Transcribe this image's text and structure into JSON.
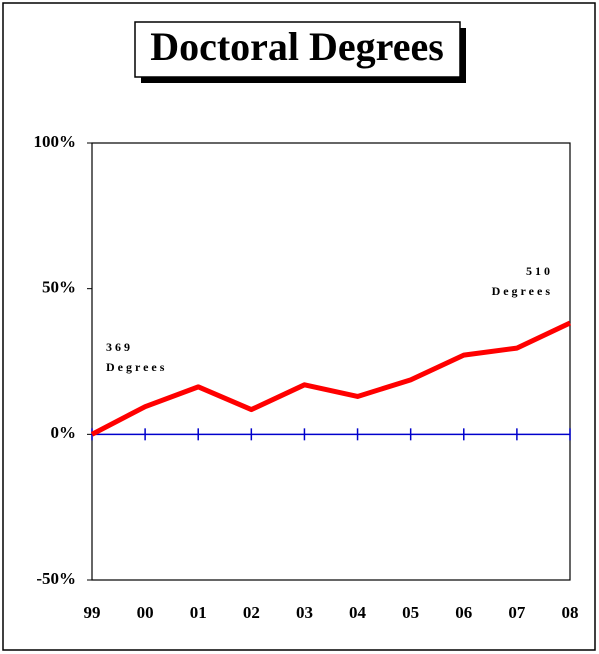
{
  "chart_data": {
    "type": "line",
    "title": "Doctoral Degrees",
    "categories": [
      "99",
      "00",
      "01",
      "02",
      "03",
      "04",
      "05",
      "06",
      "07",
      "08"
    ],
    "values": [
      0,
      9.5,
      16.3,
      8.5,
      17,
      13,
      18.7,
      27.2,
      29.6,
      38.2
    ],
    "color": "#ff0000",
    "zero_line_color": "#0000cc",
    "ylim": [
      -50,
      100
    ],
    "yticks": [
      {
        "value": -50,
        "label": "-50%"
      },
      {
        "value": 0,
        "label": "0%"
      },
      {
        "value": 50,
        "label": "50%"
      },
      {
        "value": 100,
        "label": "100%"
      }
    ],
    "annotations": [
      {
        "lines": [
          "369",
          "Degrees"
        ]
      },
      {
        "lines": [
          "510",
          "Degrees"
        ]
      }
    ]
  }
}
